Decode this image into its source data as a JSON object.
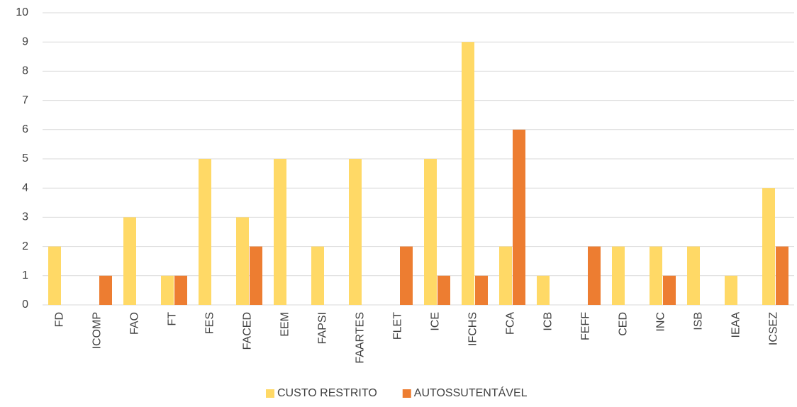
{
  "chart_data": {
    "type": "bar",
    "categories": [
      "FD",
      "ICOMP",
      "FAO",
      "FT",
      "FES",
      "FACED",
      "EEM",
      "FAPSI",
      "FAARTES",
      "FLET",
      "ICE",
      "IFCHS",
      "FCA",
      "ICB",
      "FEFF",
      "CED",
      "INC",
      "ISB",
      "IEAA",
      "ICSEZ"
    ],
    "series": [
      {
        "name": "CUSTO RESTRITO",
        "color": "#FFD966",
        "values": [
          2,
          0,
          3,
          1,
          5,
          3,
          5,
          2,
          5,
          0,
          5,
          9,
          2,
          1,
          0,
          2,
          2,
          2,
          1,
          4
        ]
      },
      {
        "name": "AUTOSSUTENTÁVEL",
        "color": "#ED7D31",
        "values": [
          0,
          1,
          0,
          1,
          0,
          2,
          0,
          0,
          0,
          2,
          1,
          1,
          6,
          0,
          2,
          0,
          1,
          0,
          0,
          2
        ]
      }
    ],
    "ylim": [
      0,
      10
    ],
    "yticks": [
      0,
      1,
      2,
      3,
      4,
      5,
      6,
      7,
      8,
      9,
      10
    ],
    "grid": true,
    "legend": "bottom"
  }
}
